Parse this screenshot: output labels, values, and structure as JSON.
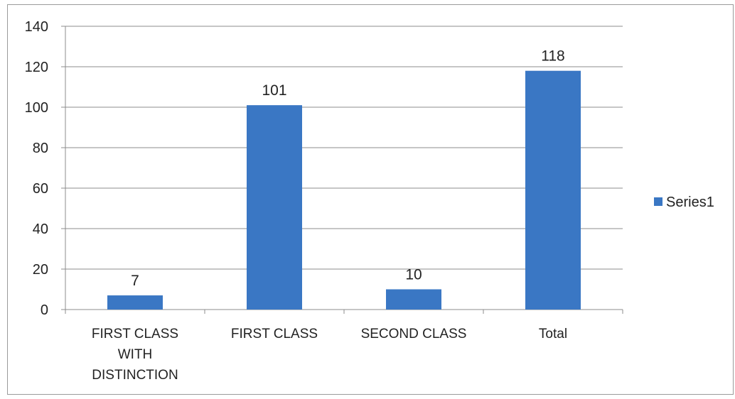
{
  "chart_data": {
    "type": "bar",
    "categories": [
      [
        "FIRST CLASS",
        "WITH",
        "DISTINCTION"
      ],
      [
        "FIRST CLASS"
      ],
      [
        "SECOND CLASS"
      ],
      [
        "Total"
      ]
    ],
    "series": [
      {
        "name": "Series1",
        "values": [
          7,
          101,
          10,
          118
        ],
        "color": "#3a77c4"
      }
    ],
    "data_labels": [
      "7",
      "101",
      "10",
      "118"
    ],
    "ylim": [
      0,
      140
    ],
    "yticks": [
      "0",
      "20",
      "40",
      "60",
      "80",
      "100",
      "120",
      "140"
    ],
    "grid": true,
    "legend": "right",
    "colors": {
      "bar": "#3a77c4",
      "grid": "#8c8c8c",
      "axis": "#8c8c8c"
    }
  }
}
